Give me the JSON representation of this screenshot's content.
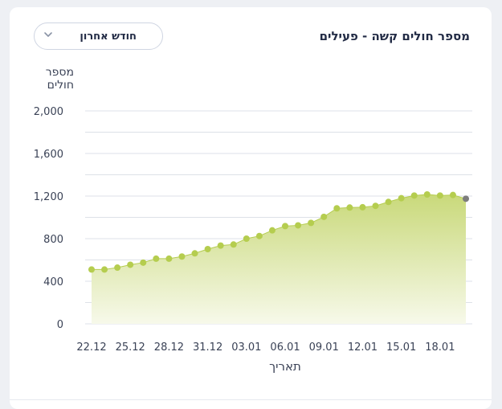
{
  "title": "מספר חולים קשה - פעילים",
  "dropdown": {
    "value": "חודש אחרון",
    "icon": "chevron-down-icon"
  },
  "chart_data": {
    "type": "area",
    "title": "מספר חולים קשה - פעילים",
    "xlabel": "תאריך",
    "ylabel_lines": [
      "מספר",
      "חולים"
    ],
    "ylim": [
      0,
      2000
    ],
    "yticks": [
      0,
      400,
      800,
      1200,
      1600,
      2000
    ],
    "ytick_labels": [
      "0",
      "400",
      "800",
      "1,200",
      "1,600",
      "2,000"
    ],
    "xtick_labels": [
      "22.12",
      "25.12",
      "28.12",
      "31.12",
      "03.01",
      "06.01",
      "09.01",
      "12.01",
      "15.01",
      "18.01"
    ],
    "grid": true,
    "colors": {
      "fill_top": "#c9d97a",
      "fill_bottom": "#f7f9ea",
      "point": "#b5cd4f",
      "last_point": "#7d7d7d",
      "line": "#b5cd4f"
    },
    "x": [
      "22.12",
      "23.12",
      "24.12",
      "25.12",
      "26.12",
      "27.12",
      "28.12",
      "29.12",
      "30.12",
      "31.12",
      "01.01",
      "02.01",
      "03.01",
      "04.01",
      "05.01",
      "06.01",
      "07.01",
      "08.01",
      "09.01",
      "10.01",
      "11.01",
      "12.01",
      "13.01",
      "14.01",
      "15.01",
      "16.01",
      "17.01",
      "18.01",
      "19.01",
      "20.01"
    ],
    "values": [
      510,
      510,
      528,
      555,
      575,
      612,
      612,
      632,
      662,
      702,
      735,
      745,
      800,
      825,
      878,
      918,
      925,
      948,
      1005,
      1085,
      1092,
      1095,
      1108,
      1145,
      1180,
      1205,
      1215,
      1205,
      1210,
      1175
    ]
  }
}
